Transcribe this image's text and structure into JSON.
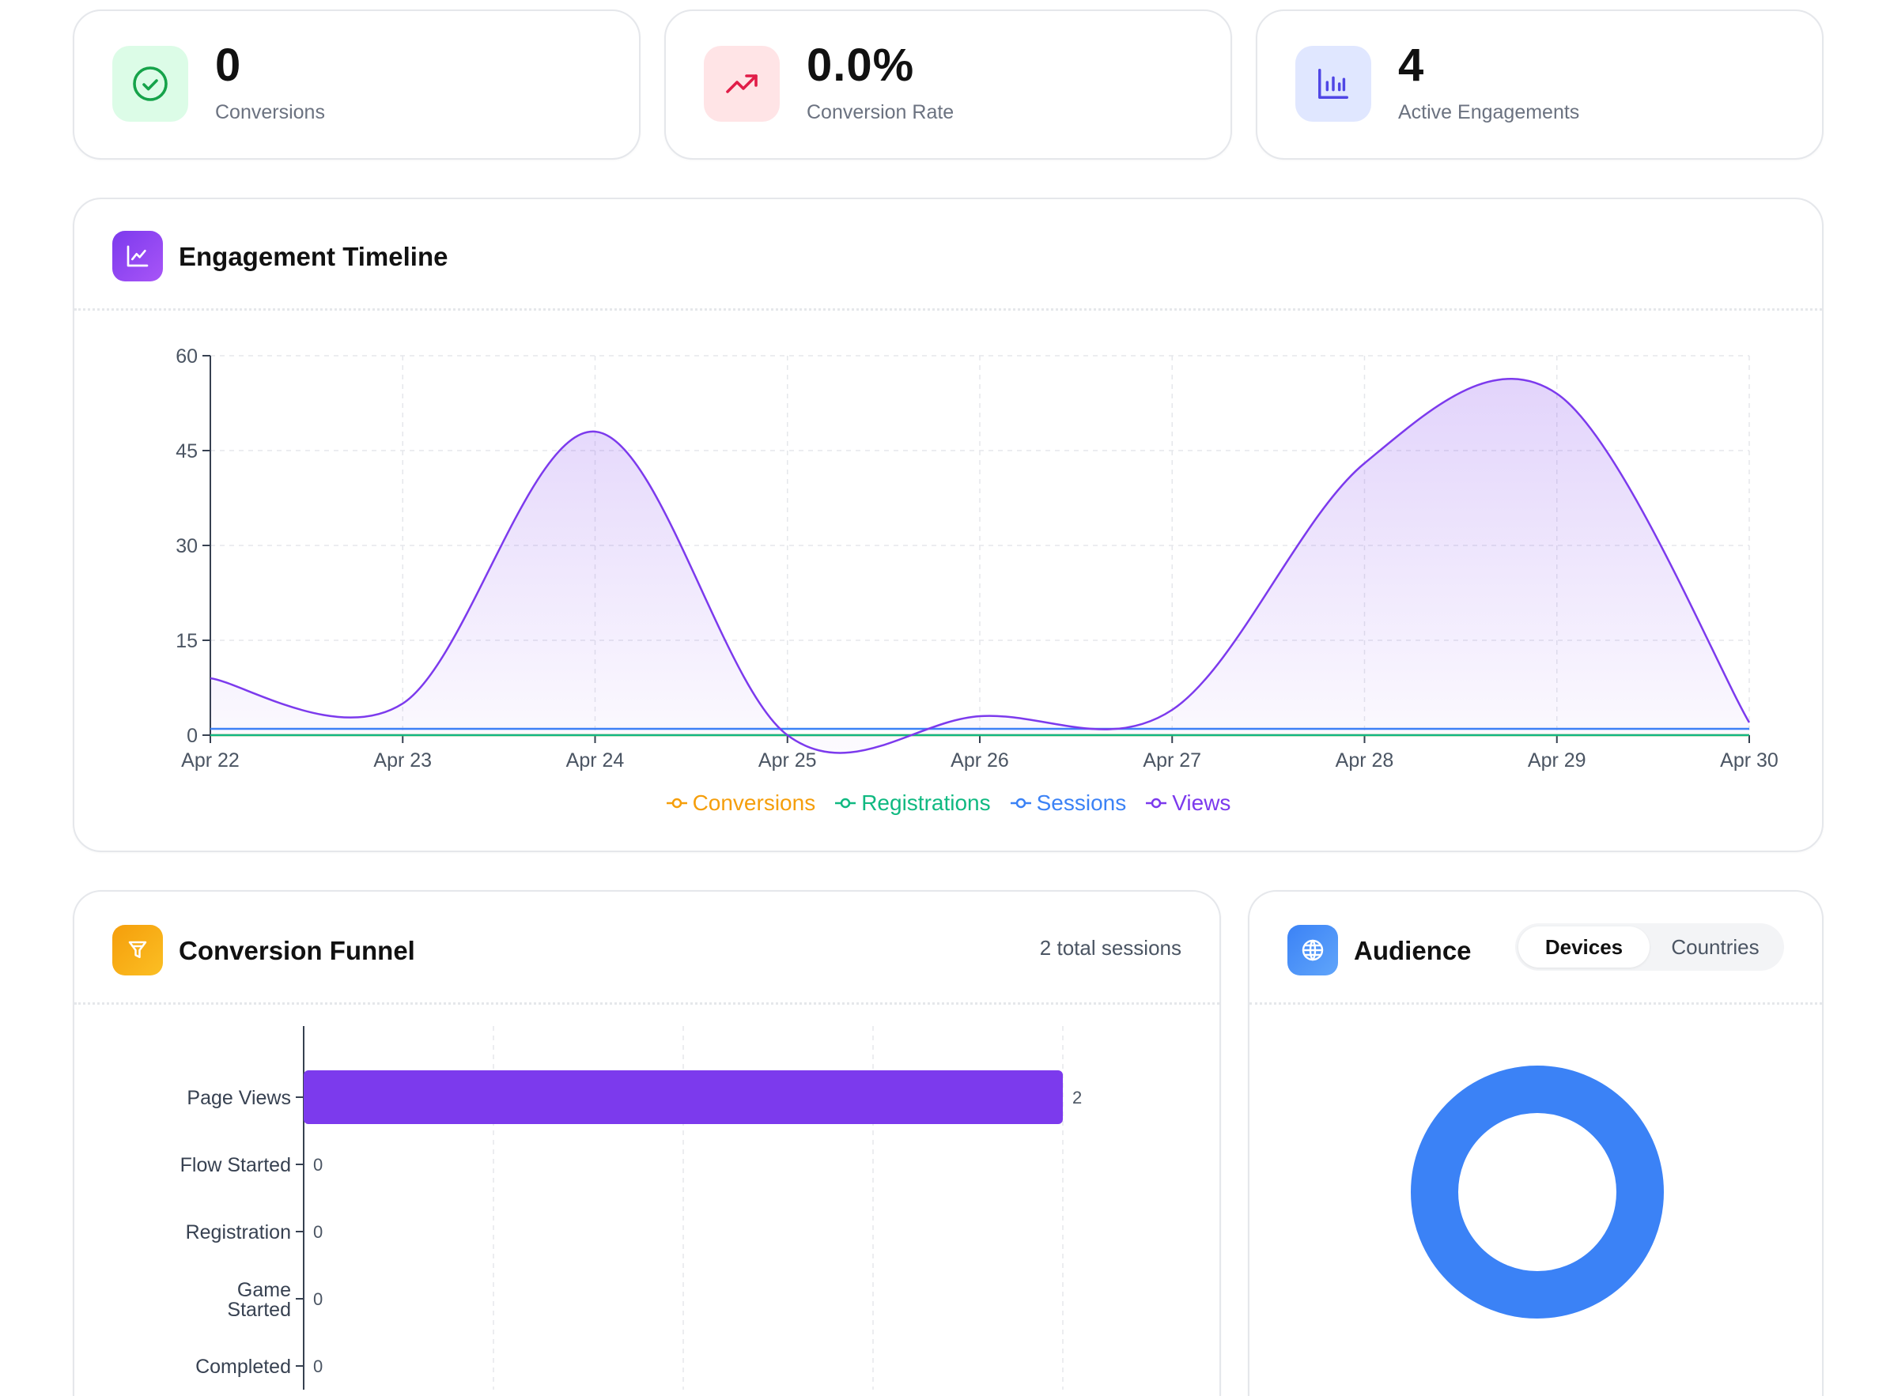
{
  "stats": [
    {
      "value": "0",
      "label": "Conversions",
      "icon": "check-circle-icon",
      "bg": "#dcfce7",
      "fg": "#16a34a"
    },
    {
      "value": "0.0%",
      "label": "Conversion Rate",
      "icon": "trending-up-icon",
      "bg": "#ffe4e6",
      "fg": "#e11d48"
    },
    {
      "value": "4",
      "label": "Active Engagements",
      "icon": "bar-chart-icon",
      "bg": "#e0e7ff",
      "fg": "#4f46e5"
    }
  ],
  "timeline": {
    "title": "Engagement Timeline",
    "icon": "line-chart-icon"
  },
  "funnel": {
    "title": "Conversion Funnel",
    "subtitle": "2 total sessions",
    "icon": "funnel-icon"
  },
  "audience": {
    "title": "Audience",
    "icon": "globe-icon",
    "tabs": [
      {
        "label": "Devices",
        "active": true
      },
      {
        "label": "Countries",
        "active": false
      }
    ]
  },
  "colors": {
    "conversions": "#f59e0b",
    "registrations": "#10b981",
    "sessions": "#3b82f6",
    "views": "#7c3aed",
    "funnel_bar": "#7c3aed",
    "donut": "#3b82f6"
  },
  "chart_data": [
    {
      "type": "area",
      "x": [
        "Apr 22",
        "Apr 23",
        "Apr 24",
        "Apr 25",
        "Apr 26",
        "Apr 27",
        "Apr 28",
        "Apr 29",
        "Apr 30"
      ],
      "ylim": [
        0,
        60
      ],
      "yticks": [
        "0",
        "15",
        "30",
        "45",
        "60"
      ],
      "grid": true,
      "legend": "bottom",
      "series": [
        {
          "name": "Conversions",
          "values": [
            0,
            0,
            0,
            0,
            0,
            0,
            0,
            0,
            0
          ]
        },
        {
          "name": "Registrations",
          "values": [
            0,
            0,
            0,
            0,
            0,
            0,
            0,
            0,
            0
          ]
        },
        {
          "name": "Sessions",
          "values": [
            1,
            1,
            1,
            1,
            1,
            1,
            1,
            1,
            1
          ]
        },
        {
          "name": "Views",
          "values": [
            9,
            5,
            48,
            0,
            3,
            4,
            43,
            54,
            2
          ]
        }
      ]
    },
    {
      "type": "bar",
      "orientation": "horizontal",
      "categories": [
        "Page Views",
        "Flow Started",
        "Registration",
        "Game Started",
        "Completed"
      ],
      "values": [
        2,
        0,
        0,
        0,
        0
      ],
      "xlim": [
        0,
        2
      ]
    },
    {
      "type": "pie",
      "style": "donut",
      "slices": [
        {
          "value": 1
        }
      ]
    }
  ]
}
